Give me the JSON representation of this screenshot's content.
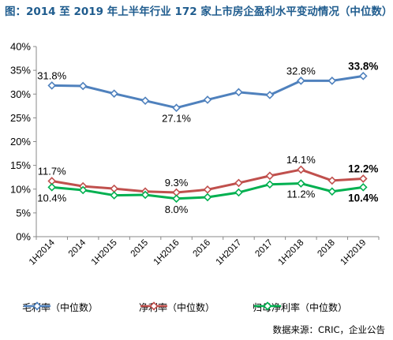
{
  "title": "图：2014 至 2019 年上半年行业 172 家上市房企盈利水平变动情况（中位数）",
  "source": "数据来源：CRIC，企业公告",
  "chart_data": {
    "type": "line",
    "categories": [
      "1H2014",
      "2014",
      "1H2015",
      "2015",
      "1H2016",
      "2016",
      "1H2017",
      "2017",
      "1H2018",
      "2018",
      "1H2019"
    ],
    "ylim": [
      0,
      40
    ],
    "yticks": [
      "0%",
      "5%",
      "10%",
      "15%",
      "20%",
      "25%",
      "30%",
      "35%",
      "40%"
    ],
    "grid": false,
    "legend_position": "bottom",
    "series": [
      {
        "name": "毛利率（中位数）",
        "color": "#4f81bd",
        "marker": "diamond",
        "values": [
          31.8,
          31.7,
          30.1,
          28.6,
          27.1,
          28.8,
          30.4,
          29.8,
          32.8,
          32.8,
          33.8
        ],
        "labels": [
          {
            "index": 0,
            "text": "31.8%",
            "pos": "above",
            "bold": false
          },
          {
            "index": 4,
            "text": "27.1%",
            "pos": "below",
            "bold": false
          },
          {
            "index": 8,
            "text": "32.8%",
            "pos": "above",
            "bold": false
          },
          {
            "index": 10,
            "text": "33.8%",
            "pos": "above",
            "bold": true
          }
        ]
      },
      {
        "name": "净利率（中位数）",
        "color": "#c0504d",
        "marker": "diamond",
        "values": [
          11.7,
          10.6,
          10.1,
          9.5,
          9.3,
          9.9,
          11.3,
          12.8,
          14.1,
          11.8,
          12.2
        ],
        "labels": [
          {
            "index": 0,
            "text": "11.7%",
            "pos": "above",
            "bold": false
          },
          {
            "index": 4,
            "text": "9.3%",
            "pos": "above",
            "bold": false
          },
          {
            "index": 8,
            "text": "14.1%",
            "pos": "above",
            "bold": false
          },
          {
            "index": 10,
            "text": "12.2%",
            "pos": "above",
            "bold": true
          }
        ]
      },
      {
        "name": "归母净利率（中位数）",
        "color": "#00b050",
        "marker": "diamond",
        "values": [
          10.4,
          9.8,
          8.7,
          8.8,
          8.0,
          8.3,
          9.3,
          11.0,
          11.2,
          9.5,
          10.4
        ],
        "labels": [
          {
            "index": 0,
            "text": "10.4%",
            "pos": "below",
            "bold": false
          },
          {
            "index": 4,
            "text": "8.0%",
            "pos": "below",
            "bold": false
          },
          {
            "index": 8,
            "text": "11.2%",
            "pos": "below",
            "bold": false
          },
          {
            "index": 10,
            "text": "10.4%",
            "pos": "below",
            "bold": true
          }
        ]
      }
    ]
  }
}
